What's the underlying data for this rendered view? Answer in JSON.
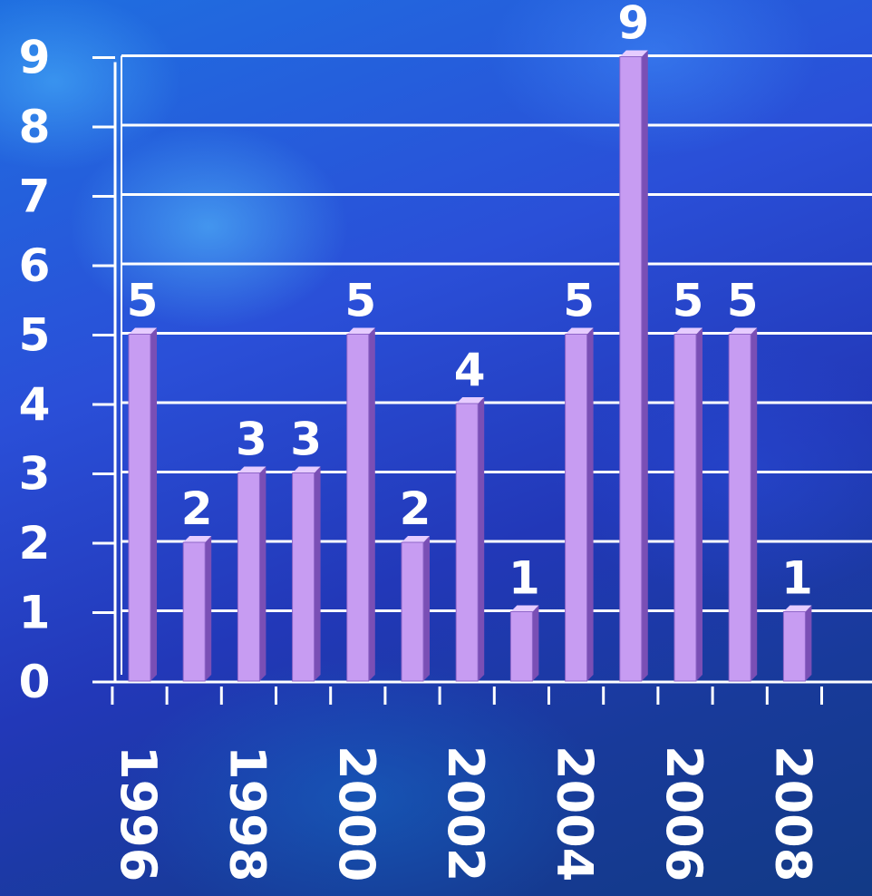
{
  "chart_data": {
    "type": "bar",
    "x": [
      1996,
      1997,
      1998,
      1999,
      2000,
      2001,
      2002,
      2003,
      2004,
      2005,
      2006,
      2007,
      2008
    ],
    "values": [
      5,
      2,
      3,
      3,
      5,
      2,
      4,
      1,
      5,
      9,
      5,
      5,
      1
    ],
    "x_tick_labels": [
      "1996",
      "1998",
      "2000",
      "2002",
      "2004",
      "2006",
      "2008"
    ],
    "y_ticks": [
      0,
      1,
      2,
      3,
      4,
      5,
      6,
      7,
      8,
      9
    ],
    "ylim": [
      0,
      9
    ],
    "data_labels": true,
    "grid": true,
    "bar_color": "#c79cf2",
    "bar_side_color": "#7a4fb5",
    "bar_top_color": "#e6ccff",
    "grid_color": "#ffffff"
  }
}
